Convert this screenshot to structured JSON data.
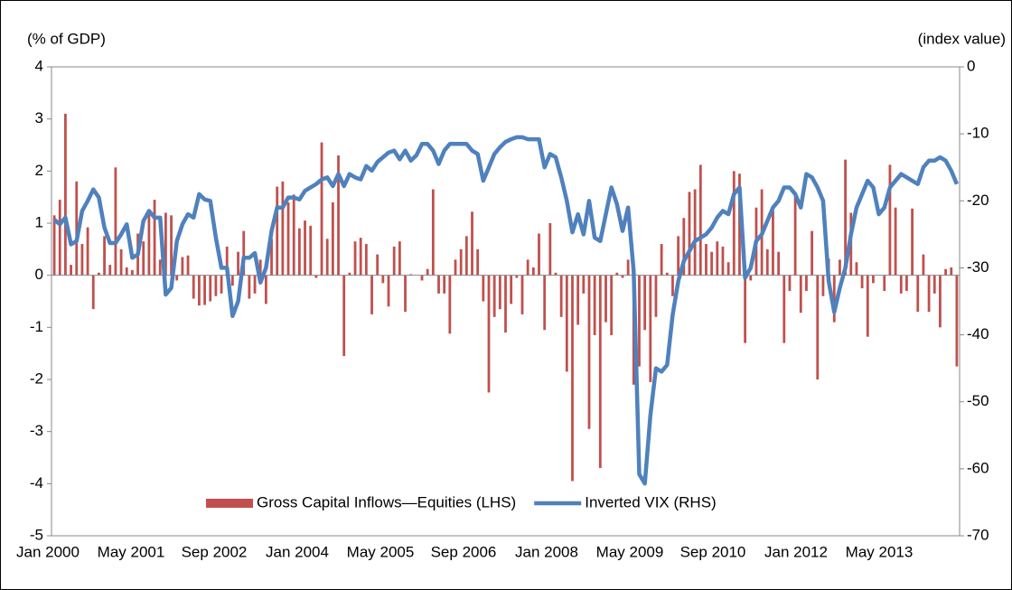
{
  "chart_data": {
    "type": "bar-line",
    "y_label": "(% of GDP)",
    "y2_label": "(index value)",
    "categories": [
      "Jan 2000",
      null,
      null,
      null,
      null,
      null,
      null,
      null,
      null,
      null,
      null,
      null,
      null,
      null,
      null,
      null,
      "May 2001",
      null,
      null,
      null,
      null,
      null,
      null,
      null,
      null,
      null,
      null,
      null,
      null,
      null,
      null,
      null,
      "Sep 2002",
      null,
      null,
      null,
      null,
      null,
      null,
      null,
      null,
      null,
      null,
      null,
      null,
      null,
      null,
      null,
      "Jan 2004",
      null,
      null,
      null,
      null,
      null,
      null,
      null,
      null,
      null,
      null,
      null,
      null,
      null,
      null,
      null,
      "May 2005",
      null,
      null,
      null,
      null,
      null,
      null,
      null,
      null,
      null,
      null,
      null,
      null,
      null,
      null,
      null,
      "Sep 2006",
      null,
      null,
      null,
      null,
      null,
      null,
      null,
      null,
      null,
      null,
      null,
      null,
      null,
      null,
      null,
      "Jan 2008",
      null,
      null,
      null,
      null,
      null,
      null,
      null,
      null,
      null,
      null,
      null,
      null,
      null,
      null,
      null,
      "May 2009",
      null,
      null,
      null,
      null,
      null,
      null,
      null,
      null,
      null,
      null,
      null,
      null,
      null,
      null,
      null,
      "Sep 2010",
      null,
      null,
      null,
      null,
      null,
      null,
      null,
      null,
      null,
      null,
      null,
      null,
      null,
      null,
      null,
      "Jan 2012",
      null,
      null,
      null,
      null,
      null,
      null,
      null,
      null,
      null,
      null,
      null,
      null,
      null,
      null,
      null,
      "May 2013",
      null,
      null
    ],
    "series": [
      {
        "name": "Gross Capital Inflows—Equities (LHS)",
        "kind": "bar",
        "axis": "y",
        "color": "#c0504d",
        "values": [
          1.15,
          1.45,
          3.1,
          0.2,
          1.8,
          0.6,
          0.92,
          -0.65,
          0.05,
          0.75,
          0.2,
          2.07,
          0.5,
          0.15,
          0.1,
          0.8,
          0.65,
          1.25,
          1.45,
          0.3,
          1.2,
          1.15,
          -0.1,
          0.35,
          0.38,
          -0.45,
          -0.58,
          -0.57,
          -0.5,
          -0.4,
          -0.35,
          0.55,
          -0.2,
          0.45,
          0.85,
          -0.45,
          -0.35,
          0.3,
          -0.55,
          0.7,
          1.7,
          1.8,
          1.4,
          1.55,
          0.9,
          1.05,
          0.95,
          -0.05,
          2.55,
          0.7,
          1.4,
          2.3,
          -1.55,
          0.05,
          0.65,
          0.72,
          0.6,
          -0.75,
          0.4,
          -0.15,
          -0.6,
          0.55,
          0.65,
          -0.7,
          0.02,
          0.0,
          -0.1,
          0.12,
          1.65,
          -0.35,
          -0.35,
          -1.12,
          0.3,
          0.5,
          0.75,
          1.22,
          0.5,
          -0.5,
          -2.25,
          -0.8,
          -0.65,
          -1.1,
          -0.55,
          -0.05,
          -0.75,
          0.3,
          0.15,
          0.8,
          -1.05,
          1.0,
          0.05,
          -0.8,
          -1.85,
          -3.95,
          -0.95,
          -0.35,
          -2.95,
          -1.15,
          -3.7,
          -0.9,
          -1.15,
          0.05,
          -0.05,
          0.3,
          -2.1,
          -1.75,
          -1.05,
          -2.05,
          -0.8,
          0.6,
          0.05,
          -0.4,
          0.75,
          1.1,
          1.6,
          1.65,
          2.12,
          0.6,
          0.45,
          0.65,
          0.55,
          0.25,
          2.0,
          1.95,
          -1.3,
          -0.1,
          1.3,
          1.65,
          0.5,
          1.25,
          0.45,
          -1.3,
          -0.3,
          1.5,
          -0.72,
          -0.3,
          0.85,
          -2.0,
          -0.4,
          0.32,
          -0.9,
          0.3,
          2.22,
          1.2,
          0.25,
          -0.25,
          -1.18,
          -0.15,
          0.0,
          -0.3,
          2.12,
          1.3,
          -0.35,
          -0.3,
          1.28,
          -0.7,
          0.4,
          -0.7,
          -0.35,
          -1.0,
          0.12,
          0.15,
          -1.75
        ]
      },
      {
        "name": "Inverted VIX (RHS)",
        "kind": "line",
        "axis": "y2",
        "color": "#4f81bd",
        "values": [
          -22.8,
          -23.5,
          -22.5,
          -26.5,
          -26,
          -21.5,
          -20,
          -18.3,
          -19.5,
          -24,
          -26.3,
          -26.3,
          -25,
          -23.5,
          -28.5,
          -28,
          -23,
          -21.5,
          -22.5,
          -22.5,
          -34,
          -33,
          -26,
          -23.5,
          -22,
          -22.5,
          -19,
          -19.8,
          -20,
          -25.5,
          -30,
          -30,
          -37.2,
          -35,
          -28.5,
          -28.5,
          -27.8,
          -32.2,
          -30,
          -24.5,
          -21,
          -21,
          -19.5,
          -19.5,
          -19.8,
          -18.5,
          -18,
          -17.5,
          -16.8,
          -16.5,
          -17.8,
          -16,
          -17.8,
          -16,
          -16.5,
          -16.8,
          -14.8,
          -15.5,
          -14.2,
          -13.5,
          -12.8,
          -12.5,
          -13.8,
          -12.5,
          -14,
          -13.2,
          -11.5,
          -11.5,
          -12.5,
          -14.5,
          -12.5,
          -11.5,
          -11.5,
          -11.5,
          -11.5,
          -12.5,
          -13,
          -17,
          -15,
          -13,
          -12,
          -11.2,
          -10.8,
          -10.5,
          -10.5,
          -10.8,
          -10.8,
          -10.8,
          -15,
          -13,
          -13.5,
          -16.5,
          -20,
          -24.7,
          -22,
          -25,
          -20,
          -25.5,
          -26,
          -22,
          -18,
          -20.5,
          -24.5,
          -21,
          -30.5,
          -60.8,
          -62.2,
          -52,
          -45,
          -45.5,
          -44.5,
          -37,
          -32,
          -29,
          -27.5,
          -26,
          -25.5,
          -25,
          -24,
          -22.5,
          -21.5,
          -22,
          -19,
          -18,
          -31.5,
          -30,
          -26,
          -25,
          -23,
          -21,
          -20,
          -18,
          -18,
          -19,
          -21,
          -16,
          -16.5,
          -18,
          -20,
          -32,
          -36.6,
          -33,
          -30,
          -25,
          -21,
          -19,
          -17,
          -18,
          -22,
          -21,
          -18,
          -17,
          -16,
          -16.5,
          -17,
          -17.5,
          -15,
          -14,
          -14,
          -13.5,
          -14,
          -15.5,
          -17.5
        ]
      }
    ],
    "ylim": [
      -5,
      4
    ],
    "yticks": [
      -5,
      -4,
      -3,
      -2,
      -1,
      0,
      1,
      2,
      3,
      4
    ],
    "y2lim": [
      -70,
      0
    ],
    "y2ticks": [
      -70,
      -60,
      -50,
      -40,
      -30,
      -20,
      -10,
      0
    ],
    "grid": false,
    "legend": "bottom"
  }
}
